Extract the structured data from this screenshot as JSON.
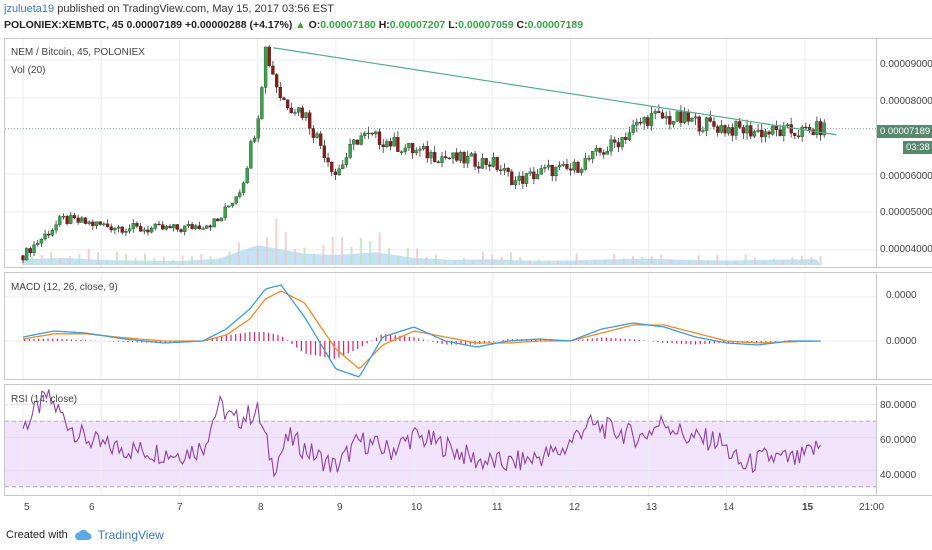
{
  "header": {
    "user": "jzulueta19",
    "published": "published on TradingView.com, May 15, 2017 03:56 EST",
    "symbol": "POLONIEX:XEMBTC, 45",
    "last": "0.00007189",
    "change_arrow": "▲",
    "change": "+0.00000288 (+4.17%)",
    "o_label": "O:",
    "o_val": "0.00007180",
    "h_label": "H:",
    "h_val": "0.00007207",
    "l_label": "L:",
    "l_val": "0.00007059",
    "c_label": "C:",
    "c_val": "0.00007189"
  },
  "panes": {
    "price_title": "NEM / Bitcoin, 45, POLONIEX",
    "vol_title": "Vol (20)",
    "macd_title": "MACD (12, 26, close, 9)",
    "rsi_title": "RSI (14, close)"
  },
  "price_axis": {
    "ticks": [
      "0.00009000",
      "0.00008000",
      "0.00006000",
      "0.00005000",
      "0.00004000"
    ],
    "last_tag": "0.00007189",
    "timer_tag": "03:38"
  },
  "macd_axis": {
    "ticks": [
      "0.0000",
      "0.0000"
    ]
  },
  "rsi_axis": {
    "ticks": [
      "80.0000",
      "60.0000",
      "40.0000"
    ]
  },
  "time_axis": {
    "ticks": [
      "5",
      "6",
      "7",
      "8",
      "9",
      "10",
      "11",
      "12",
      "13",
      "14",
      "15",
      "21:00"
    ]
  },
  "footer": {
    "created": "Created with",
    "brand": "TradingView"
  },
  "colors": {
    "up": "#37a447",
    "down": "#8b1a1a",
    "trendline": "#4fae8a",
    "macd": "#3d9be0",
    "signal": "#f08a24",
    "hist": "#d6236e",
    "rsi": "#8e3fa8",
    "rsi_band": "#f1e3fb",
    "volume": "#a9d5ee"
  },
  "chart_data": [
    {
      "type": "candlestick",
      "title": "NEM / Bitcoin, 45, POLONIEX",
      "x": [
        "5",
        "5.5",
        "6",
        "6.5",
        "7",
        "7.5",
        "7.8",
        "8",
        "8.1",
        "8.3",
        "8.6",
        "9",
        "9.3",
        "9.6",
        "10",
        "10.5",
        "11",
        "11.3",
        "11.7",
        "12",
        "12.5",
        "13",
        "13.5",
        "14",
        "14.5",
        "15",
        "15.2"
      ],
      "close": [
        3.85e-05,
        4.8e-05,
        4.65e-05,
        4.55e-05,
        4.55e-05,
        4.75e-05,
        5.7e-05,
        7.5e-05,
        9.3e-05,
        8e-05,
        7.6e-05,
        6e-05,
        7e-05,
        6.9e-05,
        6.6e-05,
        6.4e-05,
        6.3e-05,
        5.8e-05,
        6.1e-05,
        6.1e-05,
        6.7e-05,
        7.5e-05,
        7.4e-05,
        7.2e-05,
        7.1e-05,
        7.1e-05,
        7.19e-05
      ],
      "trendline": {
        "from": [
          "8.2",
          9.32e-05
        ],
        "to": [
          "15.4",
          7.03e-05
        ]
      },
      "last": 7.189e-05,
      "ylim": [
        3.55e-05,
        9.55e-05
      ]
    },
    {
      "type": "bar",
      "title": "Vol (20)",
      "x": [
        "5",
        "5.5",
        "6",
        "6.5",
        "7",
        "7.5",
        "8",
        "8.3",
        "8.6",
        "9",
        "9.5",
        "10",
        "10.5",
        "11",
        "11.5",
        "12",
        "12.5",
        "13",
        "13.5",
        "14",
        "14.5",
        "15"
      ],
      "values": [
        20,
        25,
        18,
        15,
        14,
        22,
        70,
        55,
        40,
        35,
        45,
        25,
        18,
        20,
        15,
        16,
        20,
        22,
        18,
        16,
        18,
        20
      ]
    },
    {
      "type": "line",
      "title": "MACD (12, 26, close, 9)",
      "x": [
        "5",
        "5.4",
        "5.8",
        "6.3",
        "6.8",
        "7.3",
        "7.6",
        "7.9",
        "8.1",
        "8.3",
        "8.6",
        "9",
        "9.3",
        "9.6",
        "10",
        "10.4",
        "10.8",
        "11.2",
        "11.6",
        "12",
        "12.4",
        "12.8",
        "13.2",
        "13.6",
        "14",
        "14.4",
        "14.8",
        "15.2"
      ],
      "series": [
        {
          "values": [
            0.1,
            0.25,
            0.2,
            0.05,
            -0.05,
            0.0,
            0.3,
            0.8,
            1.3,
            1.4,
            0.6,
            -0.7,
            -0.9,
            0.1,
            0.35,
            0.0,
            -0.15,
            0.0,
            0.05,
            0.0,
            0.3,
            0.45,
            0.35,
            0.1,
            -0.05,
            -0.1,
            0.0,
            0.0
          ]
        },
        {
          "values": [
            0.05,
            0.18,
            0.18,
            0.08,
            0.0,
            0.0,
            0.15,
            0.55,
            1.05,
            1.25,
            0.95,
            -0.2,
            -0.7,
            -0.1,
            0.25,
            0.1,
            -0.05,
            -0.05,
            0.0,
            0.0,
            0.2,
            0.4,
            0.4,
            0.2,
            0.0,
            -0.05,
            -0.02,
            0.0
          ]
        }
      ],
      "zero_line": 0
    },
    {
      "type": "line",
      "title": "RSI (14, close)",
      "x": [
        "5",
        "5.3",
        "5.7",
        "6",
        "6.5",
        "7",
        "7.3",
        "7.5",
        "7.7",
        "8",
        "8.2",
        "8.4",
        "8.7",
        "9",
        "9.3",
        "9.7",
        "10",
        "10.4",
        "10.8",
        "11.2",
        "11.5",
        "11.9",
        "12.2",
        "12.5",
        "12.9",
        "13.2",
        "13.5",
        "13.9",
        "14.2",
        "14.5",
        "14.9",
        "15.2"
      ],
      "values": [
        66,
        85,
        62,
        55,
        52,
        50,
        54,
        80,
        70,
        76,
        42,
        60,
        50,
        42,
        58,
        52,
        61,
        55,
        46,
        44,
        47,
        52,
        68,
        65,
        60,
        70,
        60,
        58,
        42,
        48,
        46,
        55
      ],
      "ylim": [
        25,
        92
      ],
      "bands": [
        70,
        30
      ],
      "ticks": [
        80,
        60,
        40
      ]
    }
  ]
}
